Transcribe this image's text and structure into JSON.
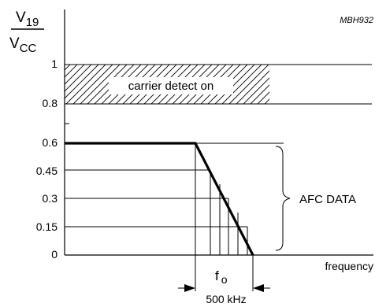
{
  "chart_data": {
    "type": "line",
    "y_label_num_base": "V",
    "y_label_num_sub": "19",
    "y_label_den_base": "V",
    "y_label_den_sub": "CC",
    "x_label": "frequency",
    "figure_code": "MBH932",
    "y_ticks": [
      {
        "value": 1,
        "label": "1"
      },
      {
        "value": 0.8,
        "label": "0.8"
      },
      {
        "value": 0.6,
        "label": "0.6"
      },
      {
        "value": 0.45,
        "label": "0.45"
      },
      {
        "value": 0.3,
        "label": "0.3"
      },
      {
        "value": 0.15,
        "label": "0.15"
      },
      {
        "value": 0,
        "label": "0"
      }
    ],
    "hatched_band": {
      "y_from": 0.8,
      "y_to": 1.0,
      "label": "carrier detect on"
    },
    "brace_label": "AFC DATA",
    "fo_label_base": "f",
    "fo_label_sub": "o",
    "bandwidth_label": "500 kHz"
  }
}
